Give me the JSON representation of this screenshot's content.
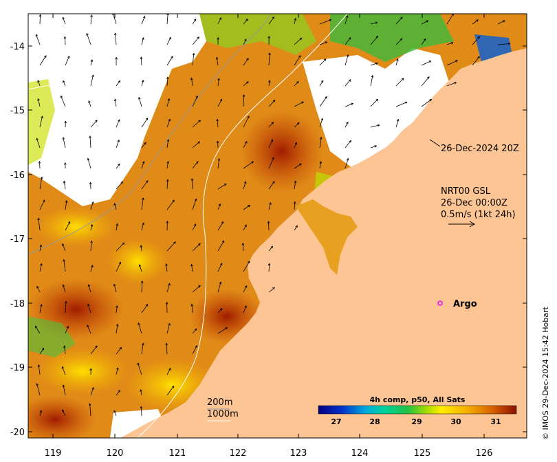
{
  "map": {
    "x_ticks": [
      "119",
      "120",
      "121",
      "122",
      "123",
      "124",
      "125",
      "126"
    ],
    "y_ticks": [
      "-14",
      "-15",
      "-16",
      "-17",
      "-18",
      "-19",
      "-20"
    ],
    "coastline_label": "26-Dec-2024 20Z",
    "current_title": "NRT00 GSL",
    "current_date": "26-Dec 00:00Z",
    "current_scale": "0.5m/s (1kt 24h)",
    "argo_label": "Argo",
    "contour_labels": [
      "200m",
      "1000m"
    ],
    "copyright": "© IMOS 29-Dec-2024 15:42 Hobart"
  },
  "colorbar": {
    "title": "4h comp, p50, All Sats",
    "ticks": [
      "27",
      "28",
      "29",
      "30",
      "31"
    ],
    "range": [
      26.4,
      31.6
    ]
  },
  "colors": {
    "land": "#fdc593",
    "argo_marker": "#ff00ff",
    "cold": "#2b8a2b",
    "warm": "#9c1a00"
  }
}
